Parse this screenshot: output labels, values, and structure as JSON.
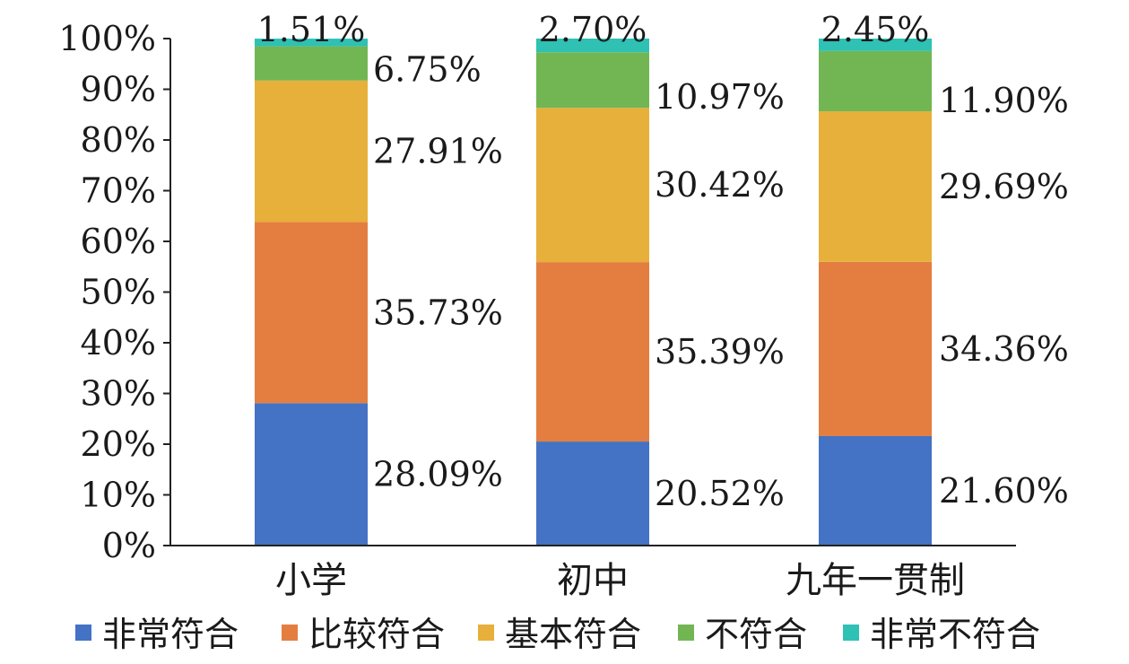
{
  "chart_data": {
    "type": "bar",
    "stacked": true,
    "categories": [
      "小学",
      "初中",
      "九年一贯制"
    ],
    "series": [
      {
        "name": "非常符合",
        "color": "#4472C4",
        "values": [
          28.09,
          20.52,
          21.6
        ],
        "labels": [
          "28.09%",
          "20.52%",
          "21.60%"
        ]
      },
      {
        "name": "比较符合",
        "color": "#E47E40",
        "values": [
          35.73,
          35.39,
          34.36
        ],
        "labels": [
          "35.73%",
          "35.39%",
          "34.36%"
        ]
      },
      {
        "name": "基本符合",
        "color": "#E6B03A",
        "values": [
          27.91,
          30.42,
          29.69
        ],
        "labels": [
          "27.91%",
          "30.42%",
          "29.69%"
        ]
      },
      {
        "name": "不符合",
        "color": "#72B653",
        "values": [
          6.75,
          10.97,
          11.9
        ],
        "labels": [
          "6.75%",
          "10.97%",
          "11.90%"
        ]
      },
      {
        "name": "非常不符合",
        "color": "#2EC1B4",
        "values": [
          1.51,
          2.7,
          2.45
        ],
        "labels": [
          "1.51%",
          "2.70%",
          "2.45%"
        ]
      }
    ],
    "yticks": [
      "0%",
      "10%",
      "20%",
      "30%",
      "40%",
      "50%",
      "60%",
      "70%",
      "80%",
      "90%",
      "100%"
    ],
    "ylim": [
      0,
      100
    ],
    "grid": false,
    "legend_position": "bottom"
  }
}
